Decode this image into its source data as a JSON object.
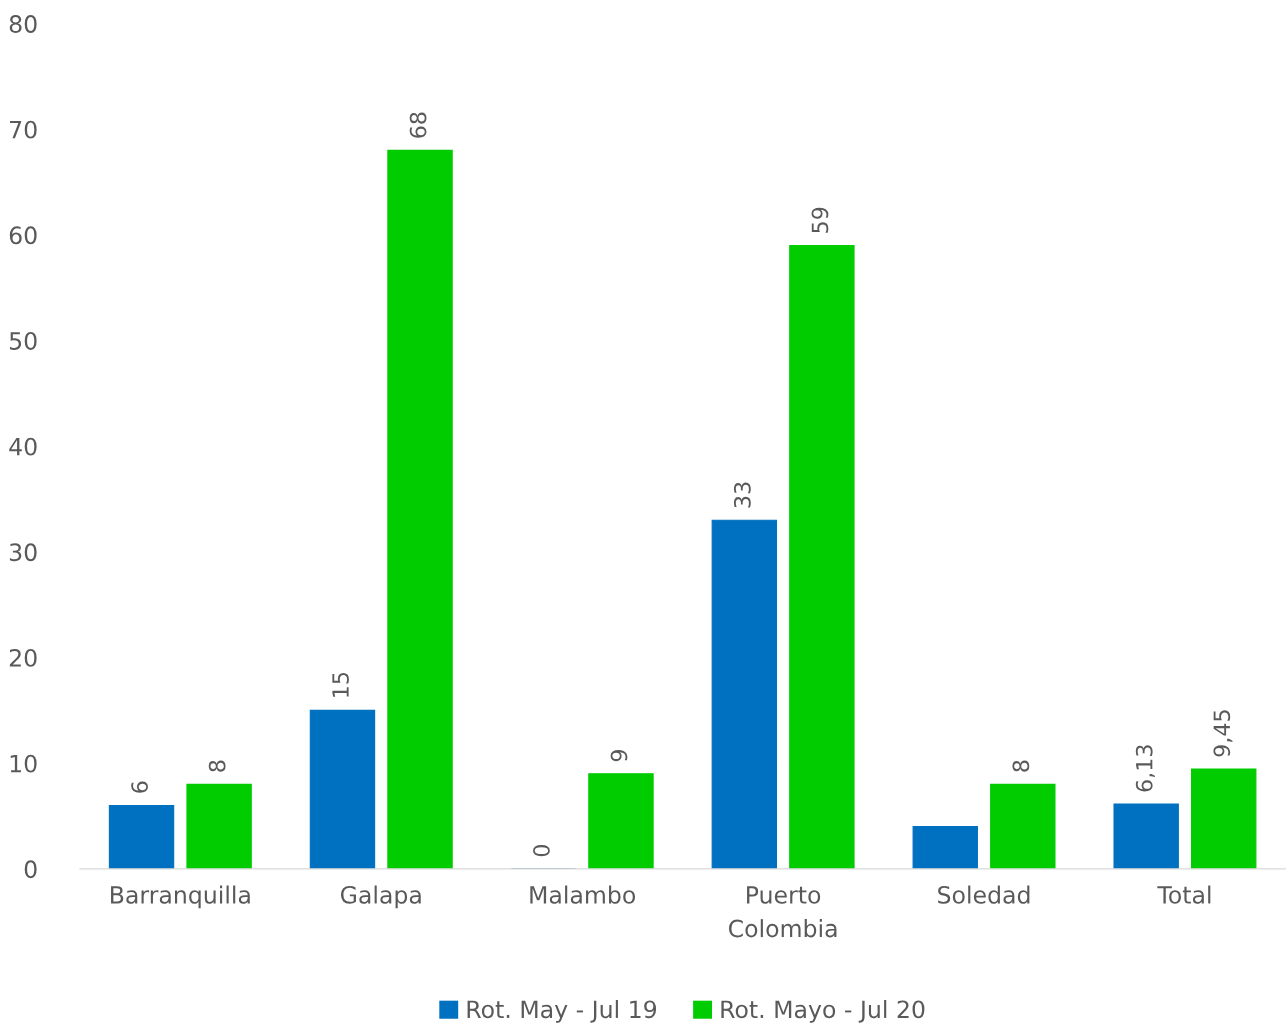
{
  "chart_data": {
    "type": "bar",
    "categories": [
      "Barranquilla",
      "Galapa",
      "Malambo",
      "Puerto Colombia",
      "Soledad",
      "Total"
    ],
    "series": [
      {
        "name": "Rot. May - Jul 19",
        "color": "#0070c0",
        "values": [
          6,
          15,
          0,
          33,
          4,
          6.13
        ],
        "value_labels": [
          "6",
          "15",
          "0",
          "33",
          null,
          "6,13"
        ]
      },
      {
        "name": "Rot. Mayo - Jul 20",
        "color": "#00cc00",
        "values": [
          8,
          68,
          9,
          59,
          8,
          9.45
        ],
        "value_labels": [
          "8",
          "68",
          "9",
          "59",
          "8",
          "9,45"
        ]
      }
    ],
    "ylim": [
      0,
      80
    ],
    "yticks": [
      0,
      10,
      20,
      30,
      40,
      50,
      60,
      70,
      80
    ],
    "grid": false,
    "legend": "bottom"
  }
}
